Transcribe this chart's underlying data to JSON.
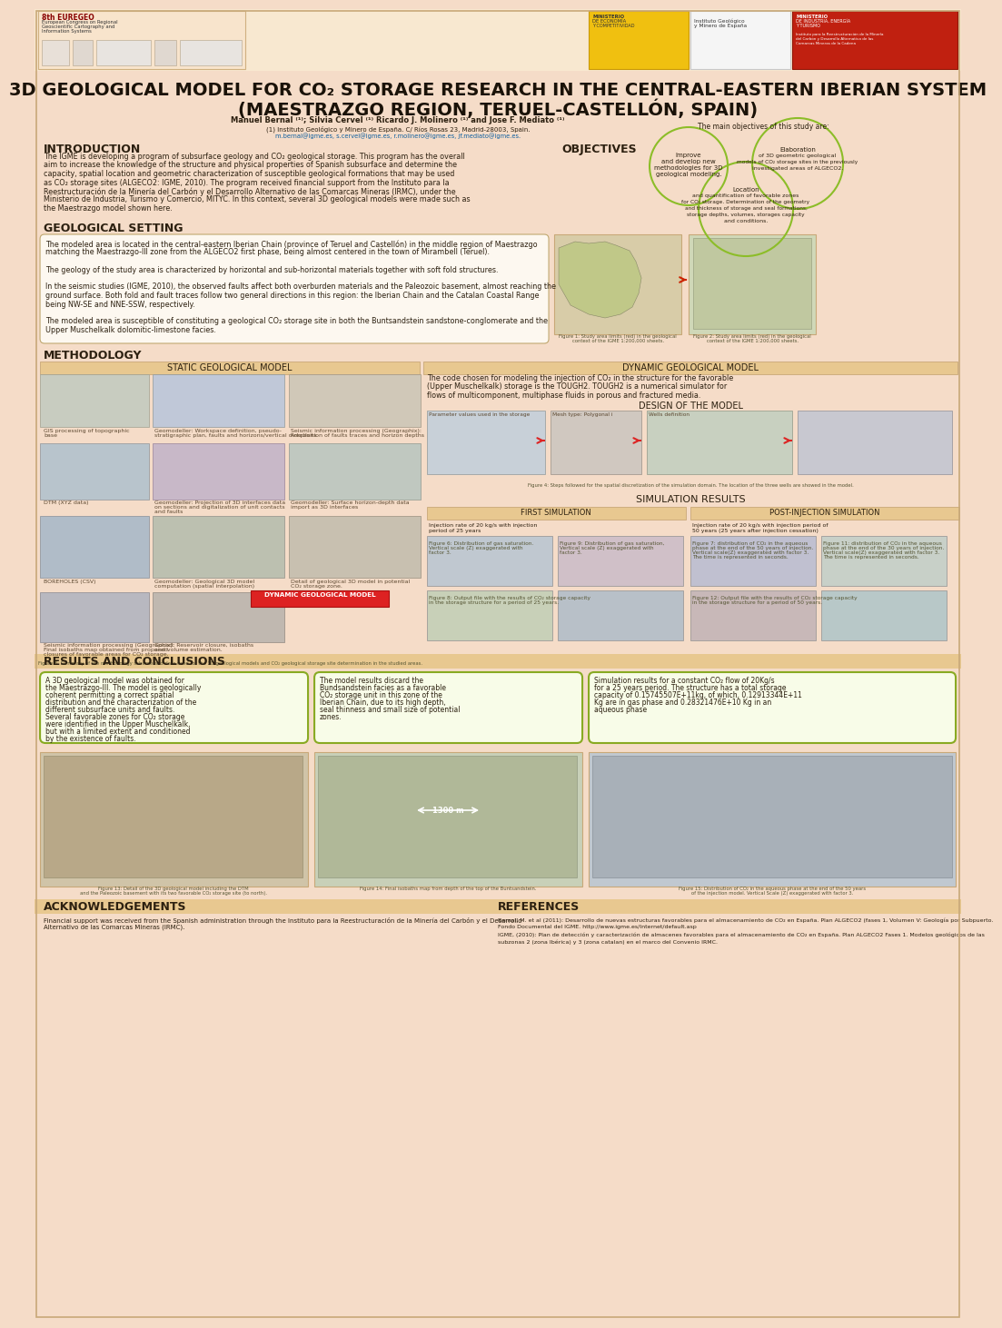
{
  "bg": "#f5dcc8",
  "title1": "3D GEOLOGICAL MODEL FOR CO₂ STORAGE RESEARCH IN THE CENTRAL-EASTERN IBERIAN SYSTEM",
  "title2": "(MAESTRAZGO REGION, TERUEL-CASTELLÓN, SPAIN)",
  "author": "Manuel Bernal ⁽¹⁾; Silvia Cervel ⁽¹⁾ Ricardo J. Molinero ⁽¹⁾ and Jose F. Mediato ⁽¹⁾",
  "affil": "(1) Instituto Geológico y Minero de España. C/ Ríos Rosas 23, Madrid-28003, Spain.",
  "email": "m.bernal@igme.es, s.cervel@igme.es, r.molinero@igme.es, jf.mediato@igme.es.",
  "obj_header": "The main objectives of this study are:",
  "section_intro": "INTRODUCTION",
  "section_geo": "GEOLOGICAL SETTING",
  "section_meth": "METHODOLOGY",
  "section_results": "RESULTS AND CONCLUSIONS",
  "section_ack": "ACKNOWLEDGEMENTS",
  "section_ref": "REFERENCES",
  "static_header": "STATIC GEOLOGICAL MODEL",
  "dynamic_header": "DYNAMIC GEOLOGICAL MODEL",
  "sim_header": "SIMULATION RESULTS",
  "first_sim": "FIRST SIMULATION",
  "post_sim": "POST-INJECTION SIMULATION",
  "design_header": "DESIGN OF THE MODEL",
  "title_fs": 14,
  "section_fs": 9,
  "body_fs": 5.8,
  "small_fs": 4.5,
  "caption_fs": 4.2,
  "dark": "#2c2010",
  "mid": "#5c4830",
  "light_border": "#c8a878",
  "green_circle": "#8cbd28",
  "red_label": "#dd2222",
  "header_stripe": "#e8c890"
}
